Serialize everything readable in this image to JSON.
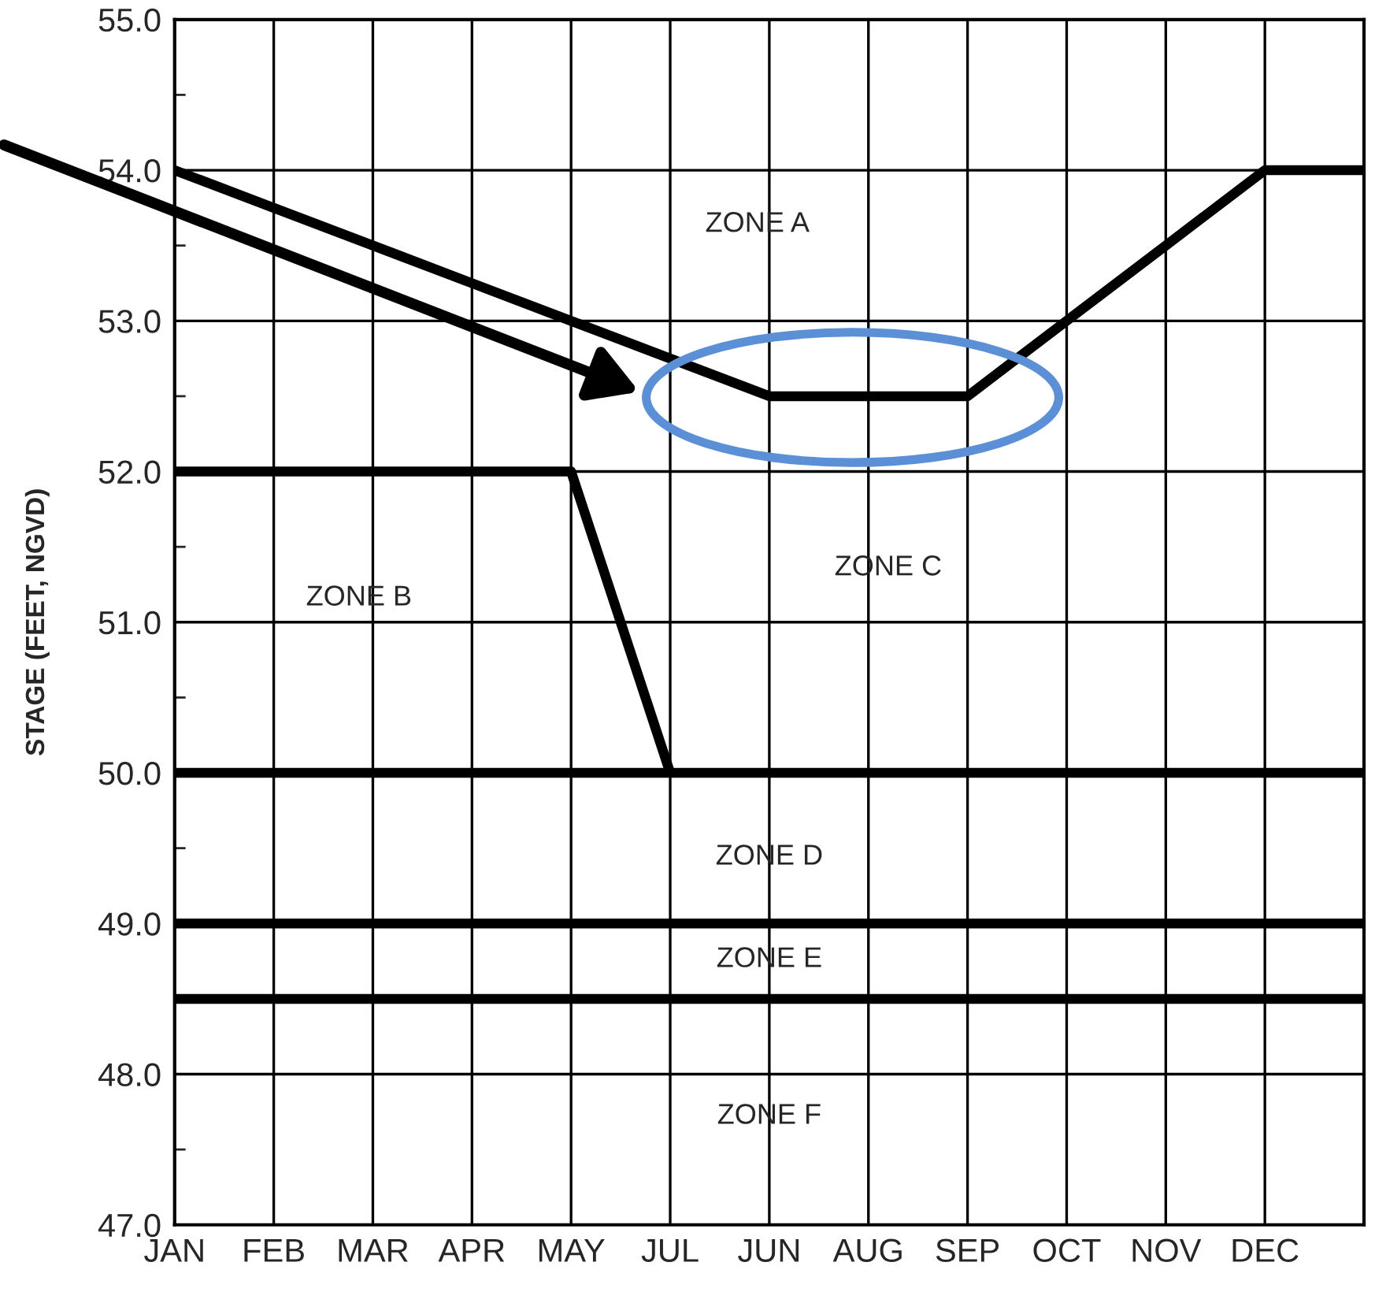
{
  "chart_data": {
    "type": "line",
    "ylabel": "STAGE (FEET, NGVD)",
    "categories": [
      "JAN",
      "FEB",
      "MAR",
      "APR",
      "MAY",
      "JUL",
      "JUN",
      "AUG",
      "SEP",
      "OCT",
      "NOV",
      "DEC",
      null
    ],
    "ylim": [
      47,
      55
    ],
    "yticks": [
      {
        "value": 47,
        "label": "47.0"
      },
      {
        "value": 47.5,
        "label": null
      },
      {
        "value": 48,
        "label": "48.0"
      },
      {
        "value": 48.5,
        "label": null
      },
      {
        "value": 49,
        "label": "49.0"
      },
      {
        "value": 49.5,
        "label": null
      },
      {
        "value": 50,
        "label": "50.0"
      },
      {
        "value": 50.5,
        "label": null
      },
      {
        "value": 51,
        "label": "51.0"
      },
      {
        "value": 51.5,
        "label": null
      },
      {
        "value": 52,
        "label": "52.0"
      },
      {
        "value": 52.5,
        "label": null
      },
      {
        "value": 53,
        "label": "53.0"
      },
      {
        "value": 53.5,
        "label": null
      },
      {
        "value": 54,
        "label": "54.0"
      },
      {
        "value": 54.5,
        "label": null
      },
      {
        "value": 55,
        "label": "55.0"
      }
    ],
    "grid": true,
    "line_style": "solid",
    "series": [
      {
        "color": "#000000",
        "values": [
          54.0,
          53.75,
          53.5,
          53.25,
          53.0,
          52.75,
          52.5,
          52.5,
          52.5,
          53.0,
          53.5,
          54.0,
          54.0
        ]
      },
      {
        "color": "#000000",
        "values": [
          52.0,
          52.0,
          52.0,
          52.0,
          52.0,
          50.0,
          null,
          null,
          null,
          null,
          null,
          null,
          null
        ]
      },
      {
        "color": "#000000",
        "values": [
          50.0,
          50.0,
          50.0,
          50.0,
          50.0,
          50.0,
          50.0,
          50.0,
          50.0,
          50.0,
          50.0,
          50.0,
          50.0
        ]
      },
      {
        "color": "#000000",
        "values": [
          49.0,
          49.0,
          49.0,
          49.0,
          49.0,
          49.0,
          49.0,
          49.0,
          49.0,
          49.0,
          49.0,
          49.0,
          49.0
        ]
      },
      {
        "color": "#000000",
        "values": [
          48.5,
          48.5,
          48.5,
          48.5,
          48.5,
          48.5,
          48.5,
          48.5,
          48.5,
          48.5,
          48.5,
          48.5,
          48.5
        ]
      }
    ],
    "annotations": [
      "ZONE A",
      "ZONE B",
      "ZONE C",
      "ZONE D",
      "ZONE E",
      "ZONE F"
    ]
  }
}
